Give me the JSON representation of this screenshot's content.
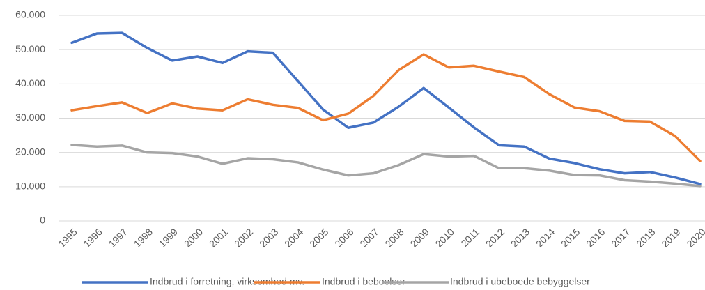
{
  "chart_data": {
    "type": "line",
    "categories": [
      "1995",
      "1996",
      "1997",
      "1998",
      "1999",
      "2000",
      "2001",
      "2002",
      "2003",
      "2004",
      "2005",
      "2006",
      "2007",
      "2008",
      "2009",
      "2010",
      "2011",
      "2012",
      "2013",
      "2014",
      "2015",
      "2016",
      "2017",
      "2018",
      "2019",
      "2020"
    ],
    "series": [
      {
        "name": "Indbrud i forretning, virksomhed mv.",
        "color": "#4472c4",
        "values": [
          52000,
          54700,
          54900,
          50500,
          46800,
          48000,
          46100,
          49500,
          49100,
          40800,
          32500,
          27200,
          28700,
          33300,
          38800,
          33100,
          27300,
          22100,
          21700,
          18200,
          16900,
          15100,
          13900,
          14300,
          12700,
          10800
        ]
      },
      {
        "name": "Indbrud i beboelser",
        "color": "#ed7d31",
        "values": [
          32300,
          33500,
          34600,
          31500,
          34300,
          32800,
          32300,
          35500,
          33900,
          33000,
          29400,
          31300,
          36500,
          44000,
          48600,
          44800,
          45300,
          43600,
          42000,
          37000,
          33100,
          32000,
          29200,
          29000,
          24800,
          17500
        ]
      },
      {
        "name": "Indbrud i ubeboede bebyggelser",
        "color": "#a5a5a5",
        "values": [
          22200,
          21700,
          22000,
          20000,
          19800,
          18800,
          16700,
          18300,
          18000,
          17100,
          15000,
          13300,
          13900,
          16300,
          19500,
          18800,
          19000,
          15400,
          15400,
          14700,
          13400,
          13300,
          11900,
          11500,
          10900,
          10200
        ]
      }
    ],
    "ylim": [
      0,
      60000
    ],
    "yticks": [
      0,
      {
        "value": 10000,
        "label": "10.000"
      },
      {
        "value": 20000,
        "label": "20.000"
      },
      {
        "value": 30000,
        "label": "30.000"
      },
      {
        "value": 40000,
        "label": "40.000"
      },
      {
        "value": 50000,
        "label": "50.000"
      },
      {
        "value": 60000,
        "label": "60.000"
      }
    ],
    "grid": true,
    "legend": "bottom"
  }
}
